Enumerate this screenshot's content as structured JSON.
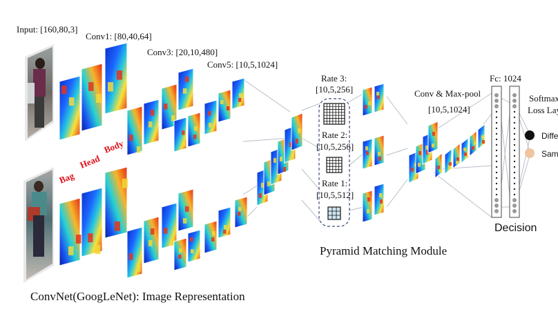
{
  "labels": {
    "input": "Input: [160,80,3]",
    "conv1": "Conv1: [80,40,64]",
    "conv3": "Conv3: [20,10,480]",
    "conv5": "Conv5: [10,5,1024]",
    "convnet_caption": "ConvNet(GoogLeNet): Image Representation",
    "rate3": "Rate 3:",
    "rate3_dim": "[10,5,256]",
    "rate2": "Rate 2:",
    "rate2_dim": "[10,5,256]",
    "rate1": "Rate 1:",
    "rate1_dim": "[10,5,512]",
    "pyramid_caption": "Pyramid Matching Module",
    "convmax": "Conv & Max-pool",
    "convmax_dim": "[10,5,1024]",
    "fc": "Fc: 1024",
    "softmax_l1": "Softmax",
    "softmax_l2": "Loss Layer",
    "different": "Different",
    "same": "Same",
    "decision": "Decision"
  },
  "parts": {
    "bag": "Bag",
    "head": "Head",
    "body": "Body"
  },
  "colors": {
    "legend_different": "#111111",
    "legend_same": "#f0c4a0",
    "part_label": "#e0101a"
  }
}
